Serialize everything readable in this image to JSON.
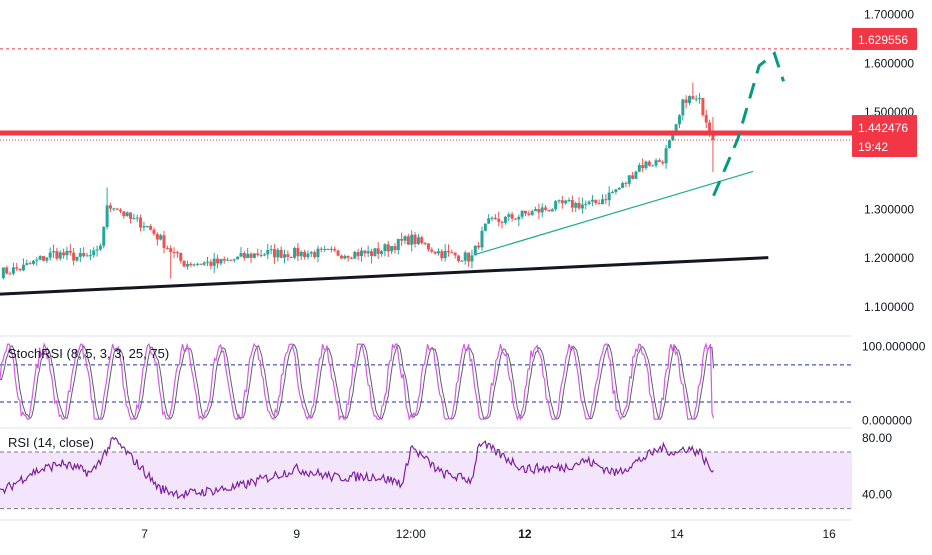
{
  "chart_data": [
    {
      "type": "candlestick",
      "price_scale": {
        "ticks": [
          "1.700000",
          "1.600000",
          "1.500000",
          "1.300000",
          "1.200000",
          "1.100000"
        ],
        "tick_values": [
          1.7,
          1.6,
          1.5,
          1.3,
          1.2,
          1.1
        ],
        "ylim": [
          1.04,
          1.73
        ]
      },
      "time_scale": {
        "labels": [
          "7",
          "9",
          "12:00",
          "12",
          "14",
          "16"
        ],
        "bold": [
          false,
          false,
          false,
          true,
          false,
          false
        ],
        "positions": [
          7,
          9,
          10.5,
          12,
          14,
          16
        ],
        "xlim": [
          5.1,
          16.3
        ]
      },
      "price_labels": {
        "target": "1.629556",
        "last_price": "1.442476",
        "countdown": "19:42"
      },
      "levels": {
        "target_price": 1.6296,
        "resistance": 1.457,
        "last_price": 1.4425
      },
      "colors": {
        "up": "#26a69a",
        "down": "#ef5350",
        "resistance": "#f23645",
        "support": "#131722",
        "trend_line": "#22ab94",
        "projection": "#089981"
      },
      "trendlines": {
        "support": [
          {
            "x": 5.1,
            "y": 1.126
          },
          {
            "x": 15.2,
            "y": 1.201
          }
        ],
        "rising": [
          {
            "x": 11.36,
            "y": 1.208
          },
          {
            "x": 15.0,
            "y": 1.378
          }
        ]
      },
      "projection_path": [
        {
          "x": 14.48,
          "y": 1.328
        },
        {
          "x": 14.8,
          "y": 1.445
        },
        {
          "x": 15.08,
          "y": 1.595
        },
        {
          "x": 15.28,
          "y": 1.62
        },
        {
          "x": 15.4,
          "y": 1.563
        }
      ],
      "anchor_closes": [
        [
          5.1,
          1.17
        ],
        [
          5.4,
          1.18
        ],
        [
          5.8,
          1.21
        ],
        [
          6.2,
          1.2
        ],
        [
          6.4,
          1.21
        ],
        [
          6.5,
          1.3
        ],
        [
          6.6,
          1.31
        ],
        [
          6.8,
          1.28
        ],
        [
          7.0,
          1.27
        ],
        [
          7.2,
          1.24
        ],
        [
          7.5,
          1.19
        ],
        [
          8.0,
          1.19
        ],
        [
          8.5,
          1.21
        ],
        [
          9.0,
          1.21
        ],
        [
          9.5,
          1.21
        ],
        [
          10.0,
          1.21
        ],
        [
          10.5,
          1.24
        ],
        [
          10.9,
          1.21
        ],
        [
          11.3,
          1.2
        ],
        [
          11.5,
          1.27
        ],
        [
          12.0,
          1.29
        ],
        [
          12.5,
          1.31
        ],
        [
          12.9,
          1.31
        ],
        [
          13.3,
          1.35
        ],
        [
          13.5,
          1.39
        ],
        [
          13.8,
          1.4
        ],
        [
          14.0,
          1.47
        ],
        [
          14.1,
          1.53
        ],
        [
          14.3,
          1.52
        ],
        [
          14.45,
          1.46
        ],
        [
          14.48,
          1.4425
        ]
      ]
    },
    {
      "type": "line",
      "title": "StochRSI (8, 5, 3, 3, 25, 75)",
      "ticks": [
        "100.000000",
        "0.000000"
      ],
      "tick_values": [
        100,
        0
      ],
      "ylim": [
        -10,
        114
      ],
      "bands": [
        75,
        25
      ],
      "colors": {
        "k": "#d05ce3",
        "d": "#5d606b",
        "band": "#1c2cb5"
      }
    },
    {
      "type": "line",
      "title": "RSI (14, close)",
      "ticks": [
        "80.00",
        "40.00"
      ],
      "tick_values": [
        80,
        40
      ],
      "ylim": [
        29,
        87
      ],
      "bands": [
        70,
        30
      ],
      "colors": {
        "line": "#7e22a0",
        "fill": "#f3e5fc",
        "band": "#787b86"
      },
      "anchors": [
        [
          5.1,
          41
        ],
        [
          5.5,
          55
        ],
        [
          5.9,
          62
        ],
        [
          6.3,
          55
        ],
        [
          6.6,
          79
        ],
        [
          6.9,
          62
        ],
        [
          7.2,
          44
        ],
        [
          7.5,
          40
        ],
        [
          8.2,
          45
        ],
        [
          9.0,
          58
        ],
        [
          9.5,
          52
        ],
        [
          10.0,
          53
        ],
        [
          10.4,
          48
        ],
        [
          10.5,
          74
        ],
        [
          10.9,
          55
        ],
        [
          11.3,
          50
        ],
        [
          11.4,
          77
        ],
        [
          12.0,
          58
        ],
        [
          12.5,
          59
        ],
        [
          12.8,
          64
        ],
        [
          13.2,
          55
        ],
        [
          13.5,
          64
        ],
        [
          13.8,
          73
        ],
        [
          14.0,
          69
        ],
        [
          14.1,
          73
        ],
        [
          14.3,
          70
        ],
        [
          14.45,
          57
        ]
      ]
    }
  ]
}
